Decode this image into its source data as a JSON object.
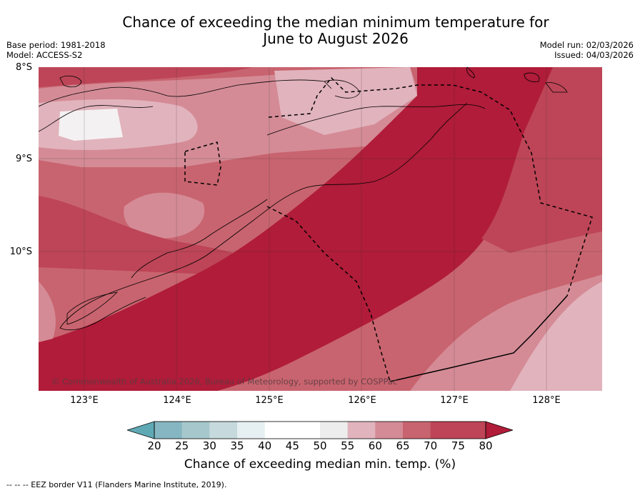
{
  "title_line1": "Chance of exceeding the median minimum temperature for",
  "title_line2": "June to August 2026",
  "base_period": "Base period: 1981-2018",
  "model": "Model: ACCESS-S2",
  "model_run": "Model run: 02/03/2026",
  "issued": "Issued: 04/03/2026",
  "lat_labels": [
    "8°S",
    "9°S",
    "10°S"
  ],
  "lon_labels": [
    "123°E",
    "124°E",
    "125°E",
    "126°E",
    "127°E",
    "128°E"
  ],
  "copyright": "© Commonwealth of Australia 2026, Bureau of Meteorology, supported by COSPPac",
  "colorbar": {
    "ticks": [
      "20",
      "25",
      "30",
      "35",
      "40",
      "45",
      "50",
      "55",
      "60",
      "65",
      "70",
      "75",
      "80"
    ],
    "label": "Chance of exceeding median min. temp. (%)",
    "colors": [
      "#5fa9b5",
      "#86b6c1",
      "#a6c8cc",
      "#c6d9dc",
      "#e6eff1",
      "#ffffff",
      "#ffffff",
      "#ededed",
      "#e1b3bd",
      "#d48b96",
      "#c8646f",
      "#bd4557",
      "#b01c39"
    ]
  },
  "colors": {
    "c60": "#e1b3bd",
    "c65": "#d48b96",
    "c70": "#c8646f",
    "c75": "#bd4557",
    "c80": "#b01c39",
    "white": "#f4f1f2"
  },
  "footnote": "-- -- -- EEZ border V11 (Flanders Marine Institute, 2019)."
}
